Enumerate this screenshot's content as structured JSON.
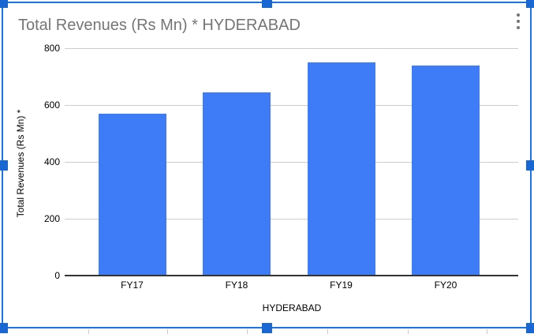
{
  "widget": {
    "kind": "embedded-spreadsheet-chart",
    "selected": true,
    "menu": {
      "more_options_icon": "kebab-menu-icon"
    }
  },
  "colors": {
    "bar": "#3d7cf6",
    "selection_border": "#1a73e8",
    "selection_handle": "#1967d2",
    "title_text": "#757575",
    "axis_text": "#000000",
    "gridline": "#cccccc",
    "axis_line": "#333333",
    "sheet_gridline": "#c9c9c9",
    "background": "#ffffff"
  },
  "chart_data": {
    "type": "bar",
    "title": "Total Revenues (Rs Mn) * HYDERABAD",
    "xlabel": "HYDERABAD",
    "ylabel": "Total Revenues (Rs Mn) *",
    "categories": [
      "FY17",
      "FY18",
      "FY19",
      "FY20"
    ],
    "values": [
      570,
      645,
      750,
      740
    ],
    "ylim": [
      0,
      800
    ],
    "yticks": [
      0,
      200,
      400,
      600,
      800
    ],
    "grid": true,
    "legend": "none",
    "bar_color": "#3d7cf6"
  }
}
